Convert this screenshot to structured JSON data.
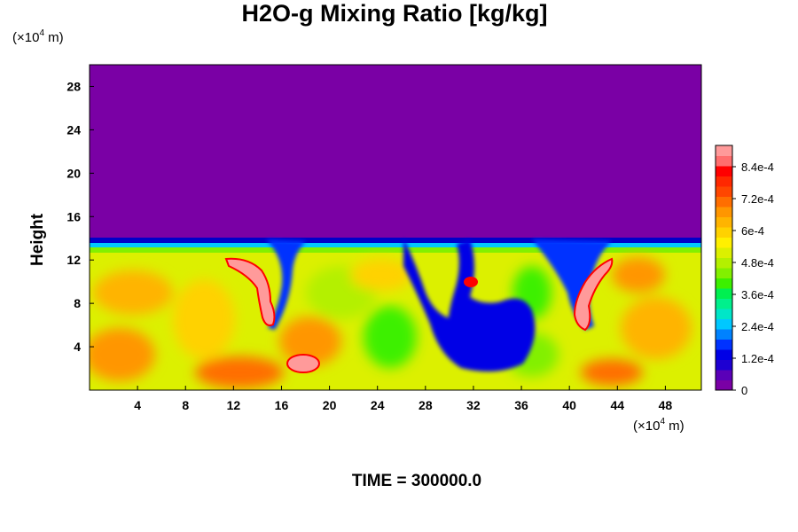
{
  "chart_data": {
    "type": "heatmap",
    "title": "H2O-g Mixing Ratio [kg/kg]",
    "ylabel": "Height",
    "xlabel": "",
    "x_unit_prefix": "(×10",
    "x_unit_exp": "4",
    "x_unit_suffix": " m)",
    "y_unit_prefix": "(×10",
    "y_unit_exp": "4",
    "y_unit_suffix": " m)",
    "xlim": [
      0,
      51
    ],
    "ylim": [
      0,
      30
    ],
    "x_ticks": [
      4,
      8,
      12,
      16,
      20,
      24,
      28,
      32,
      36,
      40,
      44,
      48
    ],
    "y_ticks": [
      4,
      8,
      12,
      16,
      20,
      24,
      28
    ],
    "colorbar": {
      "range": [
        0,
        0.00092
      ],
      "labels": [
        "0",
        "1.2e-4",
        "2.4e-4",
        "3.6e-4",
        "4.8e-4",
        "6e-4",
        "7.2e-4",
        "8.4e-4"
      ],
      "label_values": [
        0,
        0.00012,
        0.00024,
        0.00036,
        0.00048,
        0.0006,
        0.00072,
        0.00084
      ],
      "colors": [
        "#7a00a5",
        "#5a00b8",
        "#1e00d2",
        "#0000e6",
        "#0032ff",
        "#0082ff",
        "#00c8ff",
        "#00e6c8",
        "#00f08c",
        "#00f050",
        "#3cf000",
        "#82f000",
        "#b4f000",
        "#dcf000",
        "#fff000",
        "#ffd200",
        "#ffb400",
        "#ff9600",
        "#ff6e00",
        "#ff4600",
        "#ff2800",
        "#ff0000",
        "#ff6e6e",
        "#ff9a9a"
      ]
    },
    "features": [
      {
        "kind": "dry upper layer",
        "value": 0,
        "y_range": [
          13.5,
          30
        ]
      },
      {
        "kind": "moist lower layer",
        "approx_value": 0.0006,
        "y_range": [
          0,
          13
        ]
      },
      {
        "kind": "dry intrusion",
        "x_center": 31,
        "y_range": [
          2,
          14
        ]
      },
      {
        "kind": "high moisture plume",
        "x_center": 15,
        "y_range": [
          6,
          12
        ],
        "approx_value": 0.00088
      },
      {
        "kind": "high moisture plume",
        "x_center": 42,
        "y_range": [
          5,
          12
        ],
        "approx_value": 0.00088
      },
      {
        "kind": "high moisture blob",
        "x": 18,
        "y": 2.5,
        "approx_value": 0.00088
      }
    ]
  },
  "footer": {
    "time_label": "TIME = 300000.0"
  }
}
